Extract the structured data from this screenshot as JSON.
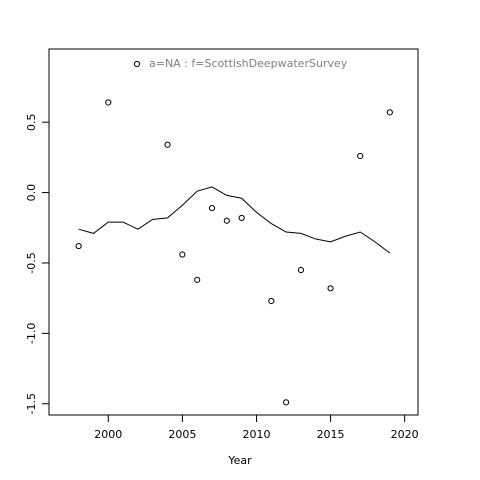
{
  "chart_data": {
    "type": "scatter",
    "x_label": "Year",
    "xlim": [
      1996.0,
      2020.9
    ],
    "ylim": [
      -1.58,
      1.02
    ],
    "xticks": [
      2000,
      2005,
      2010,
      2015,
      2020
    ],
    "yticks": [
      0.5,
      {
        "value": 0,
        "label": "0.0"
      },
      -0.5,
      {
        "value": -1,
        "label": "-1.0"
      },
      -1.5
    ],
    "legend_color": "#808080",
    "series": [
      {
        "name": "a=NA  :  f=ScottishDeepwaterSurvey",
        "color": "#000000",
        "x": [
          1998,
          2000,
          2004,
          2005,
          2006,
          2007,
          2008,
          2009,
          2011,
          2012,
          2013,
          2015,
          2017,
          2019
        ],
        "values": [
          -0.38,
          0.64,
          0.34,
          -0.44,
          -0.62,
          -0.11,
          -0.2,
          -0.18,
          -0.77,
          -1.49,
          -0.55,
          -0.68,
          0.26,
          0.57
        ]
      }
    ],
    "line": {
      "color": "#000000",
      "x": [
        1998,
        1999,
        2000,
        2001,
        2002,
        2003,
        2004,
        2005,
        2006,
        2007,
        2008,
        2009,
        2010,
        2011,
        2012,
        2013,
        2014,
        2015,
        2016,
        2017,
        2018,
        2019
      ],
      "values": [
        -0.26,
        -0.29,
        -0.21,
        -0.21,
        -0.26,
        -0.19,
        -0.18,
        -0.09,
        0.01,
        0.04,
        -0.02,
        -0.04,
        -0.14,
        -0.22,
        -0.28,
        -0.29,
        -0.33,
        -0.35,
        -0.31,
        -0.28,
        -0.35,
        -0.43
      ]
    }
  }
}
